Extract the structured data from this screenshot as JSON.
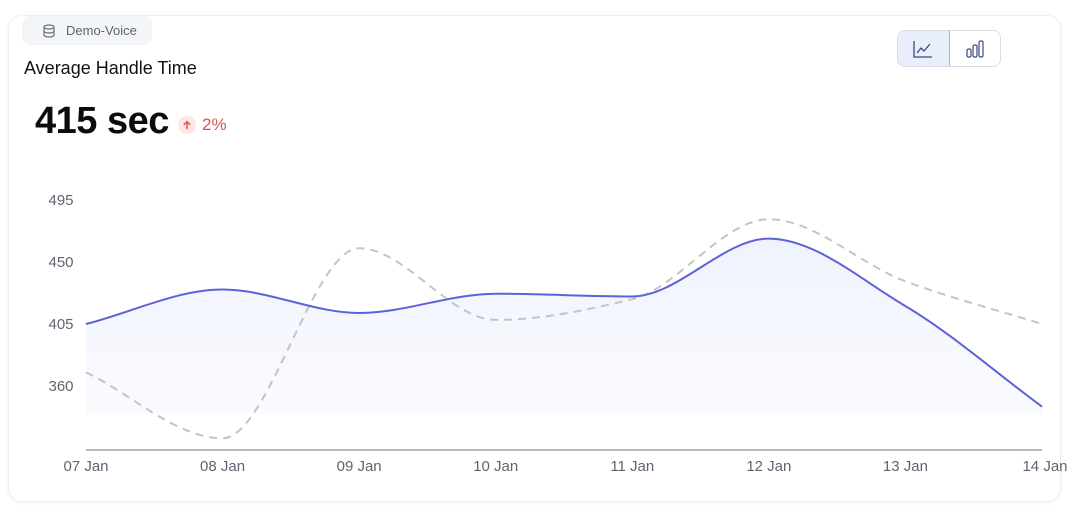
{
  "header": {
    "source_label": "Demo-Voice",
    "source_icon": "database-icon",
    "title": "Average Handle Time",
    "kpi_value": "415 sec",
    "delta_value": "2%",
    "delta_icon": "arrow-up-icon",
    "delta_color": "#e0524f"
  },
  "view_toggle": {
    "options": [
      {
        "icon": "line-chart-icon",
        "active": true
      },
      {
        "icon": "bar-chart-icon",
        "active": false
      }
    ]
  },
  "chart_data": {
    "type": "line",
    "categories": [
      "07 Jan",
      "08 Jan",
      "09 Jan",
      "10 Jan",
      "11 Jan",
      "12 Jan",
      "13 Jan",
      "14 Jan"
    ],
    "yticks": [
      495,
      450,
      405,
      360
    ],
    "ylim": [
      315,
      495
    ],
    "grid": false,
    "series": [
      {
        "name": "",
        "style": "solid-area",
        "color": "#5b63d6",
        "values": [
          405,
          430,
          413,
          427,
          425,
          467,
          418,
          345
        ]
      },
      {
        "name": "",
        "style": "dashed",
        "color": "#c4c4c4",
        "values": [
          370,
          322,
          460,
          408,
          423,
          481,
          436,
          405
        ]
      }
    ]
  }
}
